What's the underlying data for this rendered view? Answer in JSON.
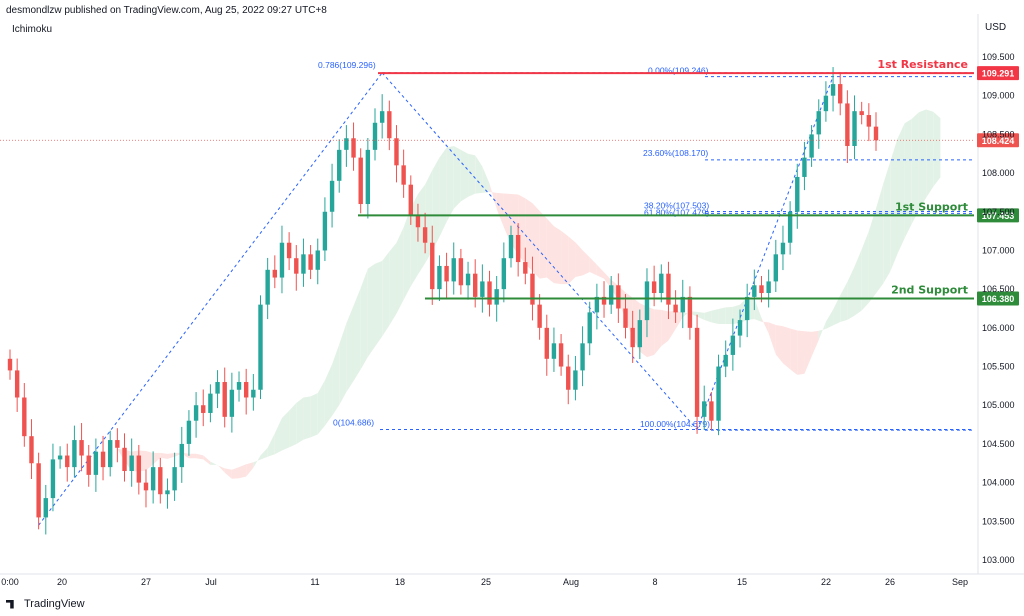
{
  "header": {
    "text": "desmondlzw published on TradingView.com, Aug 25, 2022 09:27 UTC+8"
  },
  "indicator": {
    "label": "Ichimoku"
  },
  "currency": {
    "label": "USD"
  },
  "brand": {
    "label": "TradingView"
  },
  "colors": {
    "up": "#26a69a",
    "down": "#ef5350",
    "resistance": "#f23645",
    "support": "#2e8b3a",
    "fib": "#2962ff",
    "cloud_bull": "#e3f2e6",
    "cloud_bear": "#fde3e1"
  },
  "chart_data": {
    "type": "candlestick",
    "ylim": [
      102.95,
      109.7
    ],
    "y_ticks": [
      "103.000",
      "103.500",
      "104.000",
      "104.500",
      "105.000",
      "105.500",
      "106.000",
      "106.500",
      "107.000",
      "107.500",
      "108.000",
      "108.500",
      "109.000",
      "109.500"
    ],
    "x_ticks": [
      "0:00",
      "20",
      "27",
      "Jul",
      "11",
      "18",
      "25",
      "Aug",
      "8",
      "15",
      "22",
      "26",
      "Sep"
    ],
    "levels": [
      {
        "name": "1st Resistance",
        "value": 109.291,
        "tag": "109.291",
        "color": "#f23645"
      },
      {
        "name": "1st Support",
        "value": 107.453,
        "tag": "107.453",
        "color": "#2e8b3a"
      },
      {
        "name": "2nd Support",
        "value": 106.38,
        "tag": "106.380",
        "color": "#2e8b3a"
      }
    ],
    "last_price": {
      "value": 108.424,
      "tag": "108.424"
    },
    "fib_labels": [
      {
        "text": "0.786(109.296)",
        "value": 109.296
      },
      {
        "text": "0(104.686)",
        "value": 104.686
      },
      {
        "text": "0.00%(109.246)",
        "value": 109.246
      },
      {
        "text": "23.60%(108.170)",
        "value": 108.17
      },
      {
        "text": "38.20%(107.503)",
        "value": 107.503
      },
      {
        "text": "61.80%(107.479)",
        "value": 107.479
      },
      {
        "text": "100.00%(104.679)",
        "value": 104.679
      }
    ],
    "closes": [
      105.45,
      105.1,
      104.6,
      104.25,
      103.55,
      103.8,
      104.3,
      104.35,
      104.2,
      104.55,
      104.35,
      104.1,
      104.4,
      104.2,
      104.55,
      104.45,
      104.15,
      104.35,
      104.0,
      103.9,
      104.2,
      103.85,
      103.9,
      104.2,
      104.5,
      104.8,
      105.0,
      104.9,
      105.15,
      105.3,
      104.85,
      105.2,
      105.3,
      105.1,
      105.2,
      106.3,
      106.75,
      106.65,
      107.1,
      106.9,
      106.7,
      106.95,
      106.75,
      107.0,
      107.5,
      107.9,
      108.3,
      108.45,
      108.2,
      107.6,
      108.3,
      108.65,
      108.8,
      108.45,
      108.1,
      107.85,
      107.45,
      107.3,
      107.1,
      106.5,
      106.8,
      106.6,
      106.9,
      106.55,
      106.7,
      106.4,
      106.6,
      106.3,
      106.5,
      106.9,
      107.2,
      106.85,
      106.7,
      106.3,
      106.0,
      105.6,
      105.8,
      105.5,
      105.2,
      105.45,
      105.8,
      106.2,
      106.4,
      106.3,
      106.55,
      106.25,
      106.0,
      105.75,
      106.1,
      106.6,
      106.45,
      106.7,
      106.3,
      106.2,
      106.4,
      106.0,
      104.85,
      105.05,
      104.8,
      105.5,
      105.65,
      105.9,
      106.1,
      106.4,
      106.55,
      106.45,
      106.6,
      106.95,
      107.1,
      107.5,
      107.95,
      108.2,
      108.5,
      108.8,
      109.0,
      109.15,
      108.9,
      108.35,
      108.8,
      108.75,
      108.6,
      108.424
    ],
    "x_dates_note": "daily-ish 4h candles Jun 16 - Aug 24"
  }
}
